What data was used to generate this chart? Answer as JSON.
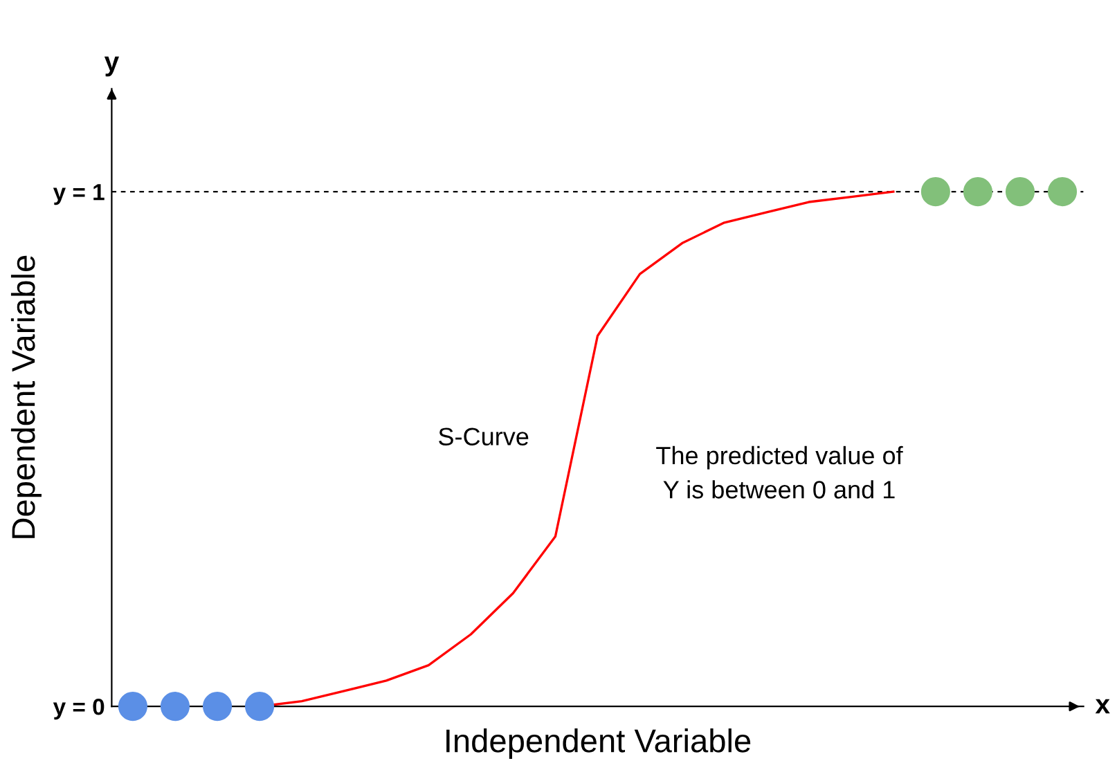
{
  "chart_data": {
    "type": "line",
    "xlabel": "Independent Variable",
    "ylabel": "Dependent Variable",
    "categories": [
      null,
      null,
      null,
      null,
      null,
      null,
      null,
      null,
      null,
      null,
      null,
      null,
      null,
      null,
      null,
      null,
      null,
      null,
      null,
      null,
      null,
      null,
      null
    ],
    "series": [
      {
        "color": "#ff0000",
        "marker": "none",
        "line_style": "solid",
        "values": [
          null,
          null,
          null,
          0,
          0.01,
          0.03,
          0.05,
          0.08,
          0.14,
          0.22,
          0.33,
          0.72,
          0.84,
          0.9,
          0.94,
          0.96,
          0.98,
          0.99,
          1,
          null,
          null,
          null,
          null
        ]
      },
      {
        "type": "scatter",
        "color": "#5b8fe6",
        "marker": "circle",
        "values": [
          0,
          0,
          0,
          0,
          null,
          null,
          null,
          null,
          null,
          null,
          null,
          null,
          null,
          null,
          null,
          null,
          null,
          null,
          null,
          null,
          null,
          null,
          null
        ]
      },
      {
        "type": "scatter",
        "color": "#82c07a",
        "marker": "circle",
        "values": [
          null,
          null,
          null,
          null,
          null,
          null,
          null,
          null,
          null,
          null,
          null,
          null,
          null,
          null,
          null,
          null,
          null,
          null,
          null,
          1,
          1,
          1,
          1
        ]
      }
    ],
    "ylim": [
      0,
      1.2
    ],
    "yticks": [
      {
        "value": 0,
        "label": "y = 0"
      },
      {
        "value": 1,
        "label": "y = 1"
      }
    ],
    "tick_labels": "y",
    "ref_lines": [
      {
        "axis": "y",
        "value": 1,
        "color": "#000000",
        "line_style": "dashed"
      }
    ],
    "annotations": [
      "S-Curve",
      "The predicted value of\nY is between 0 and 1",
      "y",
      "x"
    ],
    "grid": false
  }
}
